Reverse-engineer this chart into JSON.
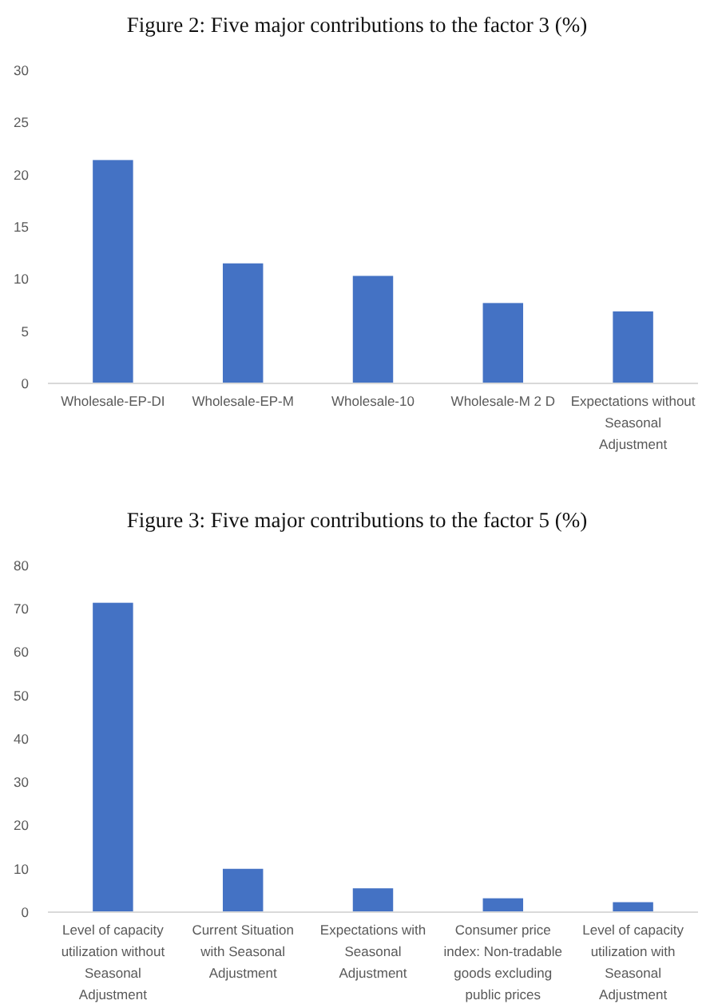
{
  "chart_data": [
    {
      "type": "bar",
      "title": "Figure 2:  Five major contributions to the factor 3 (%)",
      "categories": [
        "Wholesale-EP-DI",
        "Wholesale-EP-M",
        "Wholesale-10",
        "Wholesale-M 2 D",
        "Expectations without Seasonal Adjustment"
      ],
      "values": [
        21.4,
        11.5,
        10.3,
        7.7,
        6.9
      ],
      "color": "#4472c4",
      "ylim": [
        0,
        30
      ],
      "yticks": [
        0,
        5,
        10,
        15,
        20,
        25,
        30
      ],
      "grid": false
    },
    {
      "type": "bar",
      "title": "Figure 3:  Five major contributions to the factor 5 (%)",
      "categories": [
        "Level of capacity utilization without Seasonal Adjustment",
        "Current Situation with Seasonal Adjustment",
        "Expectations with Seasonal Adjustment",
        "Consumer price index: Non-tradable goods excluding public prices",
        "Level of capacity utilization with Seasonal Adjustment"
      ],
      "values": [
        71.4,
        10.0,
        5.5,
        3.2,
        2.3
      ],
      "color": "#4472c4",
      "ylim": [
        0,
        80
      ],
      "yticks": [
        0,
        10,
        20,
        30,
        40,
        50,
        60,
        70,
        80
      ],
      "grid": false
    }
  ]
}
